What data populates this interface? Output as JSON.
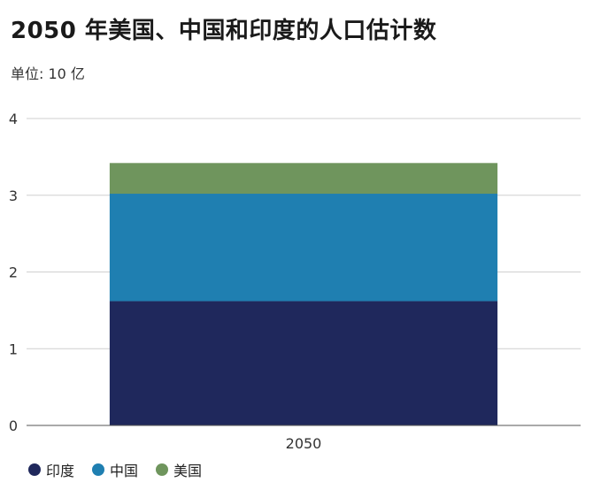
{
  "title": "2050 年美国、中国和印度的人口估计数",
  "subtitle": "单位: 10 亿",
  "chart_data": {
    "type": "bar",
    "stacked": true,
    "categories": [
      "2050"
    ],
    "series": [
      {
        "name": "印度",
        "values": [
          1.62
        ],
        "color": "#1f285c"
      },
      {
        "name": "中国",
        "values": [
          1.4
        ],
        "color": "#1f7fb1"
      },
      {
        "name": "美国",
        "values": [
          0.4
        ],
        "color": "#6f955d"
      }
    ],
    "ylim": [
      0,
      4
    ],
    "yticks": [
      "0",
      "1",
      "2",
      "3",
      "4"
    ],
    "grid": true,
    "legend_position": "bottom-left"
  }
}
